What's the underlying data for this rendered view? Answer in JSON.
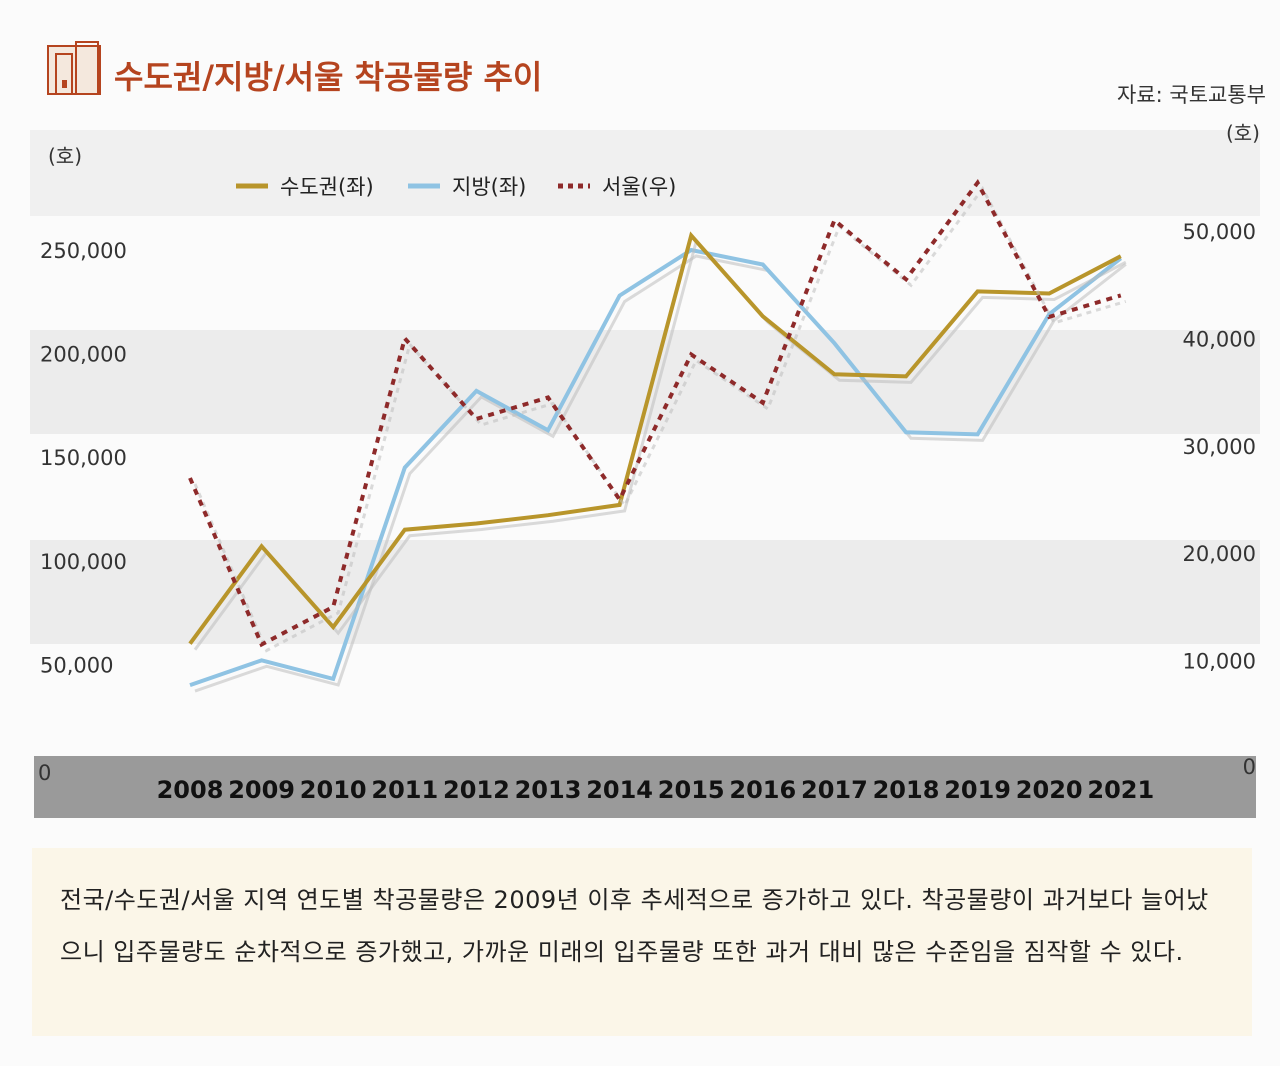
{
  "header": {
    "title": "수도권/지방/서울 착공물량 추이",
    "source": "자료: 국토교통부",
    "title_color": "#b5441f"
  },
  "chart_data": {
    "type": "line",
    "left_axis": {
      "unit_label": "(호)",
      "ticks": [
        {
          "value": 0,
          "label": "0"
        },
        {
          "value": 50000,
          "label": "50,000"
        },
        {
          "value": 100000,
          "label": "100,000"
        },
        {
          "value": 150000,
          "label": "150,000"
        },
        {
          "value": 200000,
          "label": "200,000"
        },
        {
          "value": 250000,
          "label": "250,000"
        }
      ]
    },
    "right_axis": {
      "unit_label": "(호)",
      "ticks": [
        {
          "value": 0,
          "label": "0"
        },
        {
          "value": 10000,
          "label": "10,000"
        },
        {
          "value": 20000,
          "label": "20,000"
        },
        {
          "value": 30000,
          "label": "30,000"
        },
        {
          "value": 40000,
          "label": "40,000"
        },
        {
          "value": 50000,
          "label": "50,000"
        }
      ]
    },
    "x": [
      "2008",
      "2009",
      "2010",
      "2011",
      "2012",
      "2013",
      "2014",
      "2015",
      "2016",
      "2017",
      "2018",
      "2019",
      "2020",
      "2021"
    ],
    "series": [
      {
        "name": "수도권(좌)",
        "axis": "left",
        "color": "#b8952b",
        "style": "solid",
        "values": [
          60000,
          107000,
          68000,
          115000,
          118000,
          122000,
          127000,
          257000,
          218000,
          190000,
          189000,
          230000,
          229000,
          247000
        ]
      },
      {
        "name": "지방(좌)",
        "axis": "left",
        "color": "#8fc3e3",
        "style": "solid",
        "values": [
          40000,
          52000,
          43000,
          145000,
          182000,
          163000,
          228000,
          250000,
          243000,
          205000,
          162000,
          161000,
          219000,
          246000
        ]
      },
      {
        "name": "서울(우)",
        "axis": "right",
        "color": "#8e2a2a",
        "style": "dotted",
        "values": [
          27000,
          11500,
          15000,
          40000,
          32500,
          34500,
          25000,
          38500,
          34000,
          51000,
          45500,
          54500,
          42000,
          44000
        ]
      }
    ]
  },
  "caption": {
    "text": "전국/수도권/서울 지역 연도별 착공물량은 2009년 이후 추세적으로 증가하고 있다. 착공물량이 과거보다 늘어났으니 입주물량도 순차적으로 증가했고, 가까운 미래의 입주물량 또한 과거 대비 많은 수준임을 짐작할 수 있다."
  }
}
